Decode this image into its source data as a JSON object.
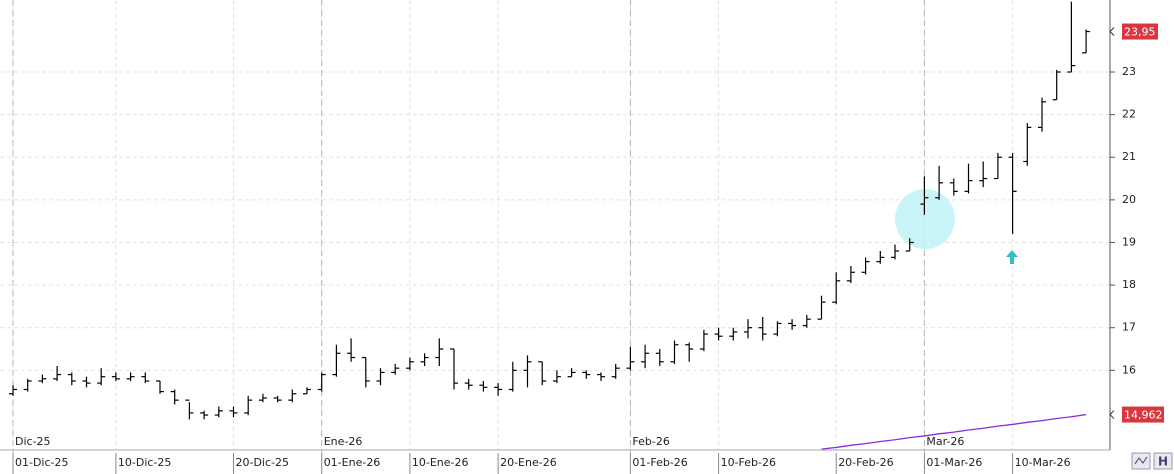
{
  "chart_data": {
    "type": "ohlc",
    "color": "#000000",
    "grid": true,
    "ylim": [
      14.13,
      24.69
    ],
    "yticks": [
      16,
      17,
      18,
      19,
      20,
      21,
      22,
      23
    ],
    "categories": [
      "01-Dic-25",
      null,
      null,
      null,
      null,
      null,
      null,
      "10-Dic-25",
      null,
      null,
      null,
      null,
      null,
      null,
      null,
      "20-Dic-25",
      null,
      null,
      null,
      null,
      null,
      "01-Ene-26",
      null,
      null,
      null,
      null,
      null,
      "10-Ene-26",
      null,
      null,
      null,
      null,
      null,
      "20-Ene-26",
      null,
      null,
      null,
      null,
      null,
      null,
      null,
      null,
      "01-Feb-26",
      null,
      null,
      null,
      null,
      null,
      "10-Feb-26",
      null,
      null,
      null,
      null,
      null,
      null,
      null,
      "20-Feb-26",
      null,
      null,
      null,
      null,
      null,
      "01-Mar-26",
      null,
      null,
      null,
      null,
      null,
      "10-Mar-26",
      null,
      null,
      null,
      null,
      null
    ],
    "month_categories": [
      "Dic-25",
      null,
      null,
      null,
      null,
      null,
      null,
      null,
      null,
      null,
      null,
      null,
      null,
      null,
      null,
      null,
      null,
      null,
      null,
      null,
      null,
      "Ene-26",
      null,
      null,
      null,
      null,
      null,
      null,
      null,
      null,
      null,
      null,
      null,
      null,
      null,
      null,
      null,
      null,
      null,
      null,
      null,
      null,
      "Feb-26",
      null,
      null,
      null,
      null,
      null,
      null,
      null,
      null,
      null,
      null,
      null,
      null,
      null,
      null,
      null,
      null,
      null,
      null,
      null,
      "Mar-26",
      null,
      null,
      null,
      null,
      null,
      null,
      null,
      null,
      null,
      null,
      null
    ],
    "ohlc": {
      "open": [
        15.45,
        15.55,
        15.75,
        15.8,
        15.9,
        15.75,
        15.7,
        15.85,
        15.8,
        15.85,
        15.75,
        15.5,
        15.3,
        15.0,
        14.95,
        15.05,
        15.0,
        15.3,
        15.35,
        15.3,
        15.45,
        15.55,
        15.9,
        16.4,
        16.3,
        15.75,
        15.95,
        16.05,
        16.2,
        16.3,
        16.5,
        15.7,
        15.65,
        15.6,
        15.55,
        16.0,
        16.2,
        15.75,
        15.85,
        15.95,
        15.9,
        15.85,
        16.05,
        16.2,
        16.4,
        16.2,
        16.6,
        16.5,
        16.85,
        16.8,
        16.9,
        17.0,
        16.85,
        17.1,
        17.05,
        17.2,
        17.6,
        18.1,
        18.3,
        18.55,
        18.65,
        18.8,
        19.9,
        20.05,
        20.4,
        20.2,
        20.45,
        20.5,
        21.0,
        20.9,
        21.7,
        22.35,
        23.0,
        23.45
      ],
      "high": [
        15.65,
        15.8,
        15.9,
        16.1,
        15.95,
        15.85,
        16.05,
        15.95,
        15.95,
        15.95,
        15.75,
        15.55,
        15.25,
        15.05,
        15.15,
        15.15,
        15.4,
        15.45,
        15.4,
        15.55,
        15.6,
        15.95,
        16.6,
        16.75,
        16.3,
        16.05,
        16.15,
        16.3,
        16.4,
        16.75,
        16.5,
        15.8,
        15.75,
        15.7,
        16.2,
        16.35,
        16.2,
        16.0,
        16.05,
        16.0,
        15.95,
        16.15,
        16.55,
        16.6,
        16.5,
        16.7,
        16.65,
        16.95,
        17.0,
        17.0,
        17.2,
        17.25,
        17.15,
        17.2,
        17.3,
        17.75,
        18.3,
        18.45,
        18.65,
        18.8,
        18.95,
        19.1,
        20.55,
        20.8,
        20.5,
        20.85,
        20.9,
        21.1,
        21.1,
        21.8,
        22.4,
        23.05,
        24.65,
        24.0
      ],
      "low": [
        15.4,
        15.5,
        15.7,
        15.75,
        15.65,
        15.6,
        15.65,
        15.75,
        15.75,
        15.7,
        15.45,
        15.2,
        14.85,
        14.85,
        14.9,
        14.9,
        14.95,
        15.25,
        15.25,
        15.25,
        15.45,
        15.5,
        15.85,
        16.2,
        15.6,
        15.65,
        15.9,
        16.0,
        16.1,
        16.1,
        15.55,
        15.55,
        15.5,
        15.4,
        15.5,
        15.6,
        15.65,
        15.7,
        15.85,
        15.8,
        15.75,
        15.8,
        16.0,
        16.05,
        16.1,
        16.15,
        16.2,
        16.45,
        16.7,
        16.7,
        16.75,
        16.7,
        16.8,
        16.95,
        17.0,
        17.2,
        17.55,
        18.05,
        18.25,
        18.5,
        18.6,
        18.8,
        19.65,
        20.0,
        20.1,
        20.15,
        20.3,
        20.5,
        19.2,
        20.8,
        21.6,
        22.35,
        23.0,
        23.45
      ],
      "close": [
        15.55,
        15.75,
        15.8,
        15.9,
        15.75,
        15.7,
        15.85,
        15.8,
        15.85,
        15.75,
        15.5,
        15.3,
        15.0,
        14.95,
        15.05,
        15.0,
        15.3,
        15.35,
        15.3,
        15.45,
        15.55,
        15.9,
        16.4,
        16.3,
        15.75,
        15.95,
        16.05,
        16.2,
        16.3,
        16.5,
        15.7,
        15.65,
        15.6,
        15.55,
        16.0,
        16.2,
        15.75,
        15.85,
        15.95,
        15.9,
        15.85,
        16.05,
        16.2,
        16.4,
        16.2,
        16.6,
        16.5,
        16.85,
        16.8,
        16.9,
        17.0,
        16.85,
        17.1,
        17.05,
        17.2,
        17.6,
        18.1,
        18.3,
        18.55,
        18.65,
        18.8,
        19.0,
        20.05,
        20.4,
        20.2,
        20.45,
        20.5,
        21.0,
        20.2,
        21.7,
        22.3,
        23.0,
        23.15,
        23.95
      ]
    },
    "last_label": "23,95",
    "last_label_color": "#d9363e",
    "ma": {
      "color": "#8a2be2",
      "values": [
        null,
        null,
        null,
        null,
        null,
        null,
        null,
        null,
        null,
        null,
        null,
        null,
        null,
        null,
        null,
        null,
        null,
        null,
        null,
        null,
        null,
        null,
        null,
        null,
        null,
        null,
        null,
        null,
        null,
        null,
        null,
        null,
        null,
        null,
        null,
        null,
        null,
        null,
        null,
        null,
        null,
        null,
        null,
        null,
        null,
        null,
        null,
        null,
        null,
        null,
        null,
        null,
        null,
        null,
        null,
        14.15,
        14.19,
        14.24,
        14.28,
        14.33,
        14.37,
        14.42,
        14.46,
        14.51,
        14.55,
        14.6,
        14.64,
        14.69,
        14.73,
        14.78,
        14.82,
        14.87,
        14.91,
        14.962
      ],
      "last_label": "14,962"
    }
  }
}
